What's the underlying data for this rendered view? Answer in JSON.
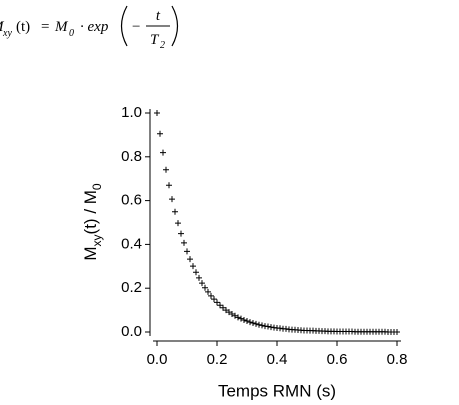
{
  "equation": {
    "lhs": "M",
    "lhs_sub": "xy",
    "arg": "(t)",
    "equals": "=",
    "m": "M",
    "m_sub": "0",
    "fn": "· exp",
    "minus": "−",
    "num": "t",
    "den": "T",
    "den_sub": "2"
  },
  "chart_data": {
    "type": "scatter",
    "marker": "+",
    "color": "#000000",
    "x_label": "Temps RMN (s)",
    "y_label": {
      "main": "M",
      "sub": "xy",
      "mid": "(t) / M",
      "sub2": "0"
    },
    "x": [
      0,
      0.01,
      0.02,
      0.03,
      0.04,
      0.05,
      0.06,
      0.07,
      0.08,
      0.09,
      0.1,
      0.11,
      0.12,
      0.13,
      0.14,
      0.15,
      0.16,
      0.17,
      0.18,
      0.19,
      0.2,
      0.21,
      0.22,
      0.23,
      0.24,
      0.25,
      0.26,
      0.27,
      0.28,
      0.29,
      0.3,
      0.31,
      0.32,
      0.33,
      0.34,
      0.35,
      0.36,
      0.37,
      0.38,
      0.39,
      0.4,
      0.41,
      0.42,
      0.43,
      0.44,
      0.45,
      0.46,
      0.47,
      0.48,
      0.49,
      0.5,
      0.51,
      0.52,
      0.53,
      0.54,
      0.55,
      0.56,
      0.57,
      0.58,
      0.59,
      0.6,
      0.61,
      0.62,
      0.63,
      0.64,
      0.65,
      0.66,
      0.67,
      0.68,
      0.69,
      0.7,
      0.71,
      0.72,
      0.73,
      0.74,
      0.75,
      0.76,
      0.77,
      0.78,
      0.79,
      0.8
    ],
    "values": [
      1,
      0.905,
      0.819,
      0.741,
      0.67,
      0.607,
      0.549,
      0.497,
      0.449,
      0.407,
      0.368,
      0.333,
      0.301,
      0.273,
      0.247,
      0.223,
      0.202,
      0.183,
      0.165,
      0.15,
      0.135,
      0.122,
      0.111,
      0.1,
      0.091,
      0.082,
      0.074,
      0.067,
      0.061,
      0.055,
      0.05,
      0.045,
      0.041,
      0.037,
      0.033,
      0.03,
      0.027,
      0.025,
      0.022,
      0.02,
      0.018,
      0.017,
      0.015,
      0.014,
      0.012,
      0.011,
      0.01,
      0.009,
      0.008,
      0.007,
      0.007,
      0.006,
      0.006,
      0.005,
      0.005,
      0.004,
      0.004,
      0.003,
      0.003,
      0.003,
      0.002,
      0.002,
      0.002,
      0.002,
      0.002,
      0.002,
      0.001,
      0.001,
      0.001,
      0.001,
      0.001,
      0.001,
      0.001,
      0.001,
      0.001,
      0.001,
      0.001,
      0,
      0,
      0,
      0
    ],
    "xlim": [
      0,
      0.8
    ],
    "ylim": [
      0,
      1
    ],
    "xticks": [
      {
        "value": 0,
        "label": "0.0"
      },
      0.2,
      0.4,
      0.6,
      0.8
    ],
    "yticks": [
      {
        "value": 0,
        "label": "0.0"
      },
      0.2,
      0.4,
      0.6,
      0.8,
      {
        "value": 1,
        "label": "1.0"
      }
    ]
  }
}
